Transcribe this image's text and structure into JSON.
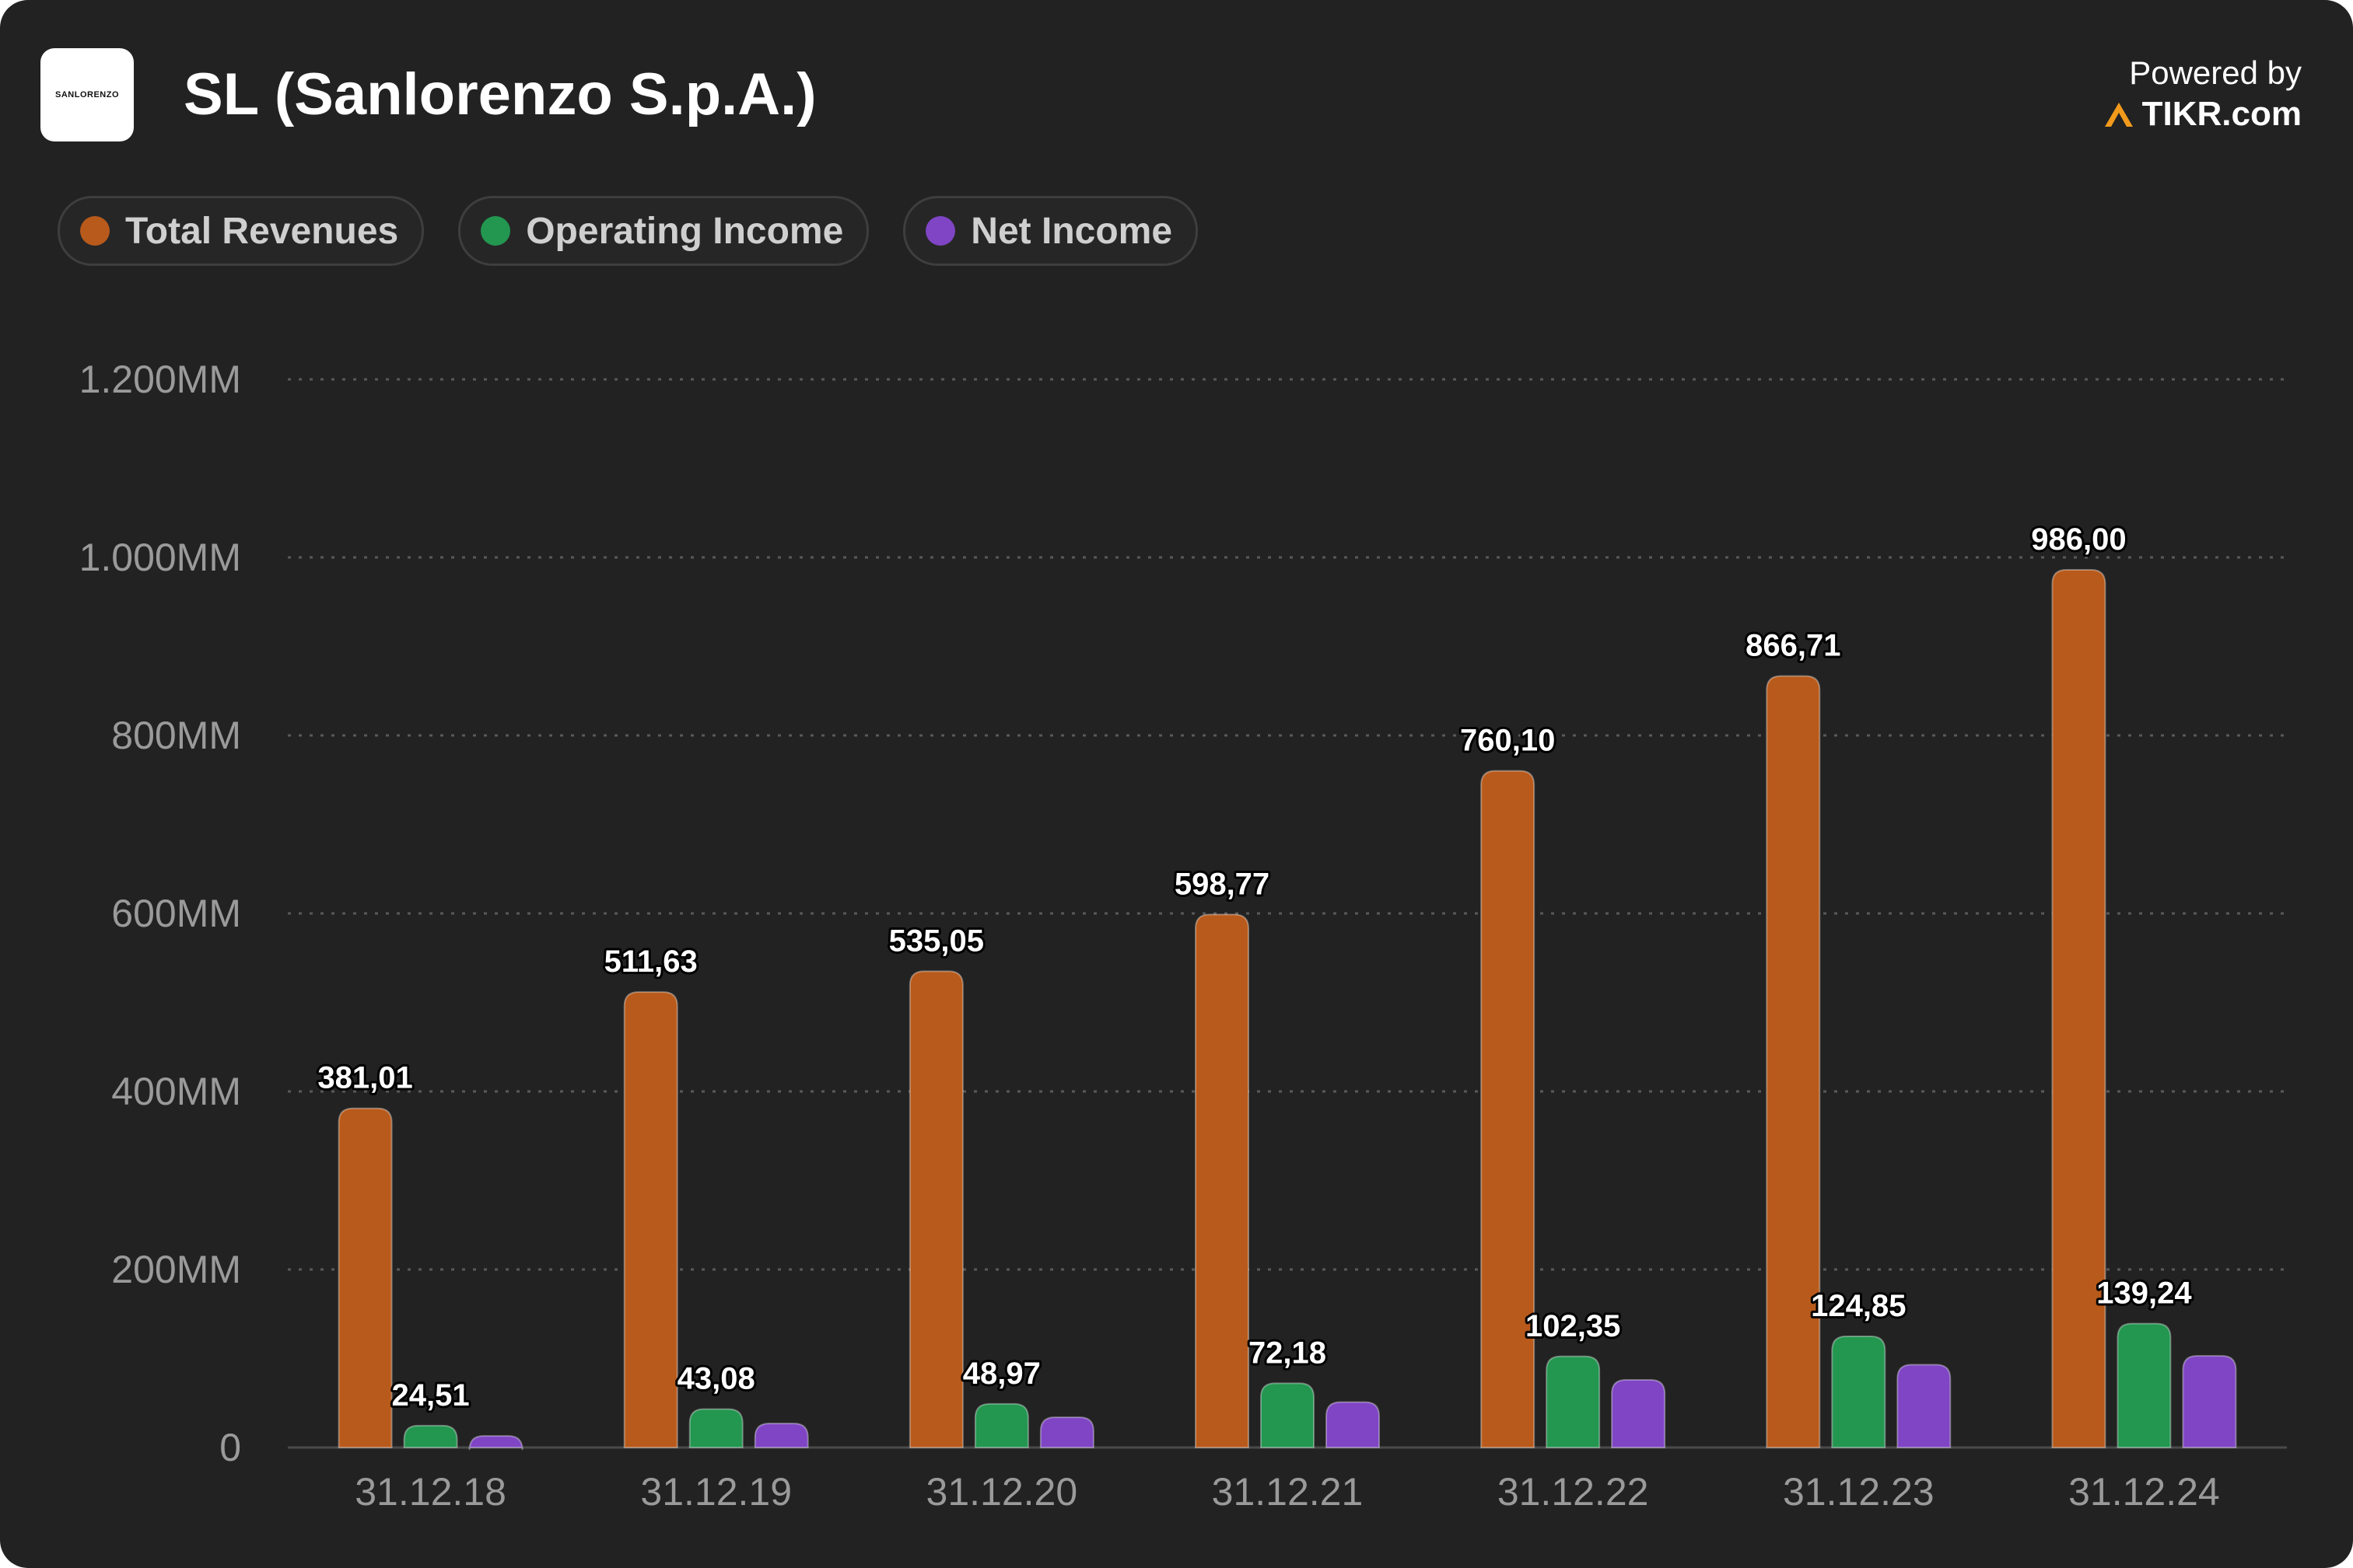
{
  "header": {
    "logo_text": "SANLORENZO",
    "title": "SL (Sanlorenzo S.p.A.)",
    "powered_by": "Powered by",
    "brand": "TIKR.com"
  },
  "colors": {
    "background": "#222222",
    "total_revenues": "#b85a1b",
    "operating_income": "#239650",
    "net_income": "#7f45c4",
    "grid": "#555555",
    "tikr_accent": "#f29a1c"
  },
  "chart_data": {
    "type": "bar",
    "title": "",
    "xlabel": "",
    "ylabel": "",
    "categories": [
      "31.12.18",
      "31.12.19",
      "31.12.20",
      "31.12.21",
      "31.12.22",
      "31.12.23",
      "31.12.24"
    ],
    "series": [
      {
        "name": "Total Revenues",
        "values": [
          381.01,
          511.63,
          535.05,
          598.77,
          760.1,
          866.71,
          986.0
        ],
        "labels": [
          "381,01",
          "511,63",
          "535,05",
          "598,77",
          "760,10",
          "866,71",
          "986,00"
        ]
      },
      {
        "name": "Operating Income",
        "values": [
          24.51,
          43.08,
          48.97,
          72.18,
          102.35,
          124.85,
          139.24
        ],
        "labels": [
          "24,51",
          "43,08",
          "48,97",
          "72,18",
          "102,35",
          "124,85",
          "139,24"
        ]
      },
      {
        "name": "Net Income",
        "values": [
          13,
          27,
          34,
          51,
          76,
          93,
          103
        ],
        "labels": [
          "",
          "",
          "",
          "",
          "",
          "",
          ""
        ]
      }
    ],
    "ylim": [
      0,
      1200
    ],
    "yticks": [
      0,
      200,
      400,
      600,
      800,
      1000,
      1200
    ],
    "ytick_labels": [
      "0",
      "200MM",
      "400MM",
      "600MM",
      "800MM",
      "1.000MM",
      "1.200MM"
    ],
    "grid": true,
    "legend_position": "top-left"
  }
}
